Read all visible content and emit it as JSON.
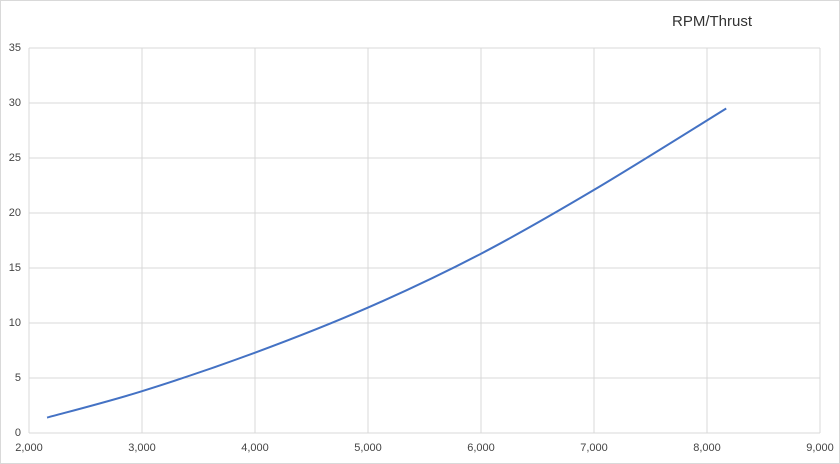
{
  "chart_data": {
    "type": "line",
    "title": "RPM/Thrust",
    "x": [
      2160,
      3000,
      4000,
      5000,
      6000,
      7000,
      8170
    ],
    "series": [
      {
        "name": "Thrust",
        "color": "#4472c4",
        "values": [
          1.4,
          3.8,
          7.3,
          11.4,
          16.3,
          22.1,
          29.5
        ]
      }
    ],
    "xlim": [
      2000,
      9000
    ],
    "xticks": [
      {
        "value": 2000,
        "label": "2,000"
      },
      {
        "value": 3000,
        "label": "3,000"
      },
      {
        "value": 4000,
        "label": "4,000"
      },
      {
        "value": 5000,
        "label": "5,000"
      },
      {
        "value": 6000,
        "label": "6,000"
      },
      {
        "value": 7000,
        "label": "7,000"
      },
      {
        "value": 8000,
        "label": "8,000"
      },
      {
        "value": 9000,
        "label": "9,000"
      }
    ],
    "ylim": [
      0,
      35
    ],
    "yticks": [
      0,
      5,
      10,
      15,
      20,
      25,
      30,
      35
    ],
    "grid": true
  }
}
